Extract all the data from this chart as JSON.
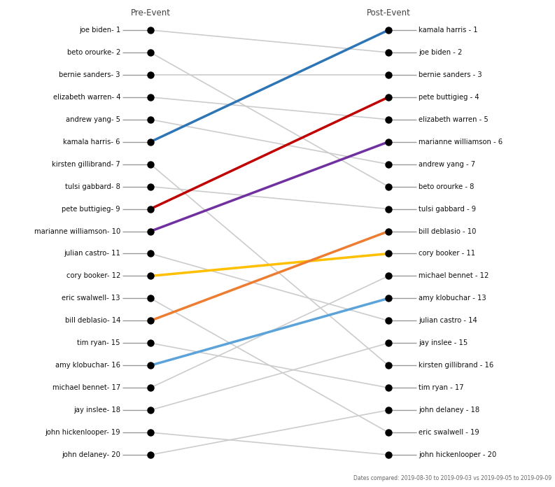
{
  "pre_event_order": [
    "joe biden",
    "beto orourke",
    "bernie sanders",
    "elizabeth warren",
    "andrew yang",
    "kamala harris",
    "kirsten gillibrand",
    "tulsi gabbard",
    "pete buttigieg",
    "marianne williamson",
    "julian castro",
    "cory booker",
    "eric swalwell",
    "bill deblasio",
    "tim ryan",
    "amy klobuchar",
    "michael bennet",
    "jay inslee",
    "john hickenlooper",
    "john delaney"
  ],
  "post_event_order": [
    "kamala harris",
    "joe biden",
    "bernie sanders",
    "pete buttigieg",
    "elizabeth warren",
    "marianne williamson",
    "andrew yang",
    "beto orourke",
    "tulsi gabbard",
    "bill deblasio",
    "cory booker",
    "michael bennet",
    "amy klobuchar",
    "julian castro",
    "jay inslee",
    "kirsten gillibrand",
    "tim ryan",
    "john delaney",
    "eric swalwell",
    "john hickenlooper"
  ],
  "highlight_colors": {
    "kamala harris": "#2e75b6",
    "pete buttigieg": "#c00000",
    "marianne williamson": "#7030a0",
    "bill deblasio": "#ed7d31",
    "cory booker": "#ffc000",
    "amy klobuchar": "#5ba3d9"
  },
  "default_line_color": "#cccccc",
  "dot_color": "#000000",
  "background_color": "#ffffff",
  "title_pre": "Pre-Event",
  "title_post": "Post-Event",
  "footer_text": "Dates compared: 2019-08-30 to 2019-09-03 vs 2019-09-05 to 2019-09-09",
  "figsize": [
    7.93,
    6.96
  ],
  "dpi": 100
}
